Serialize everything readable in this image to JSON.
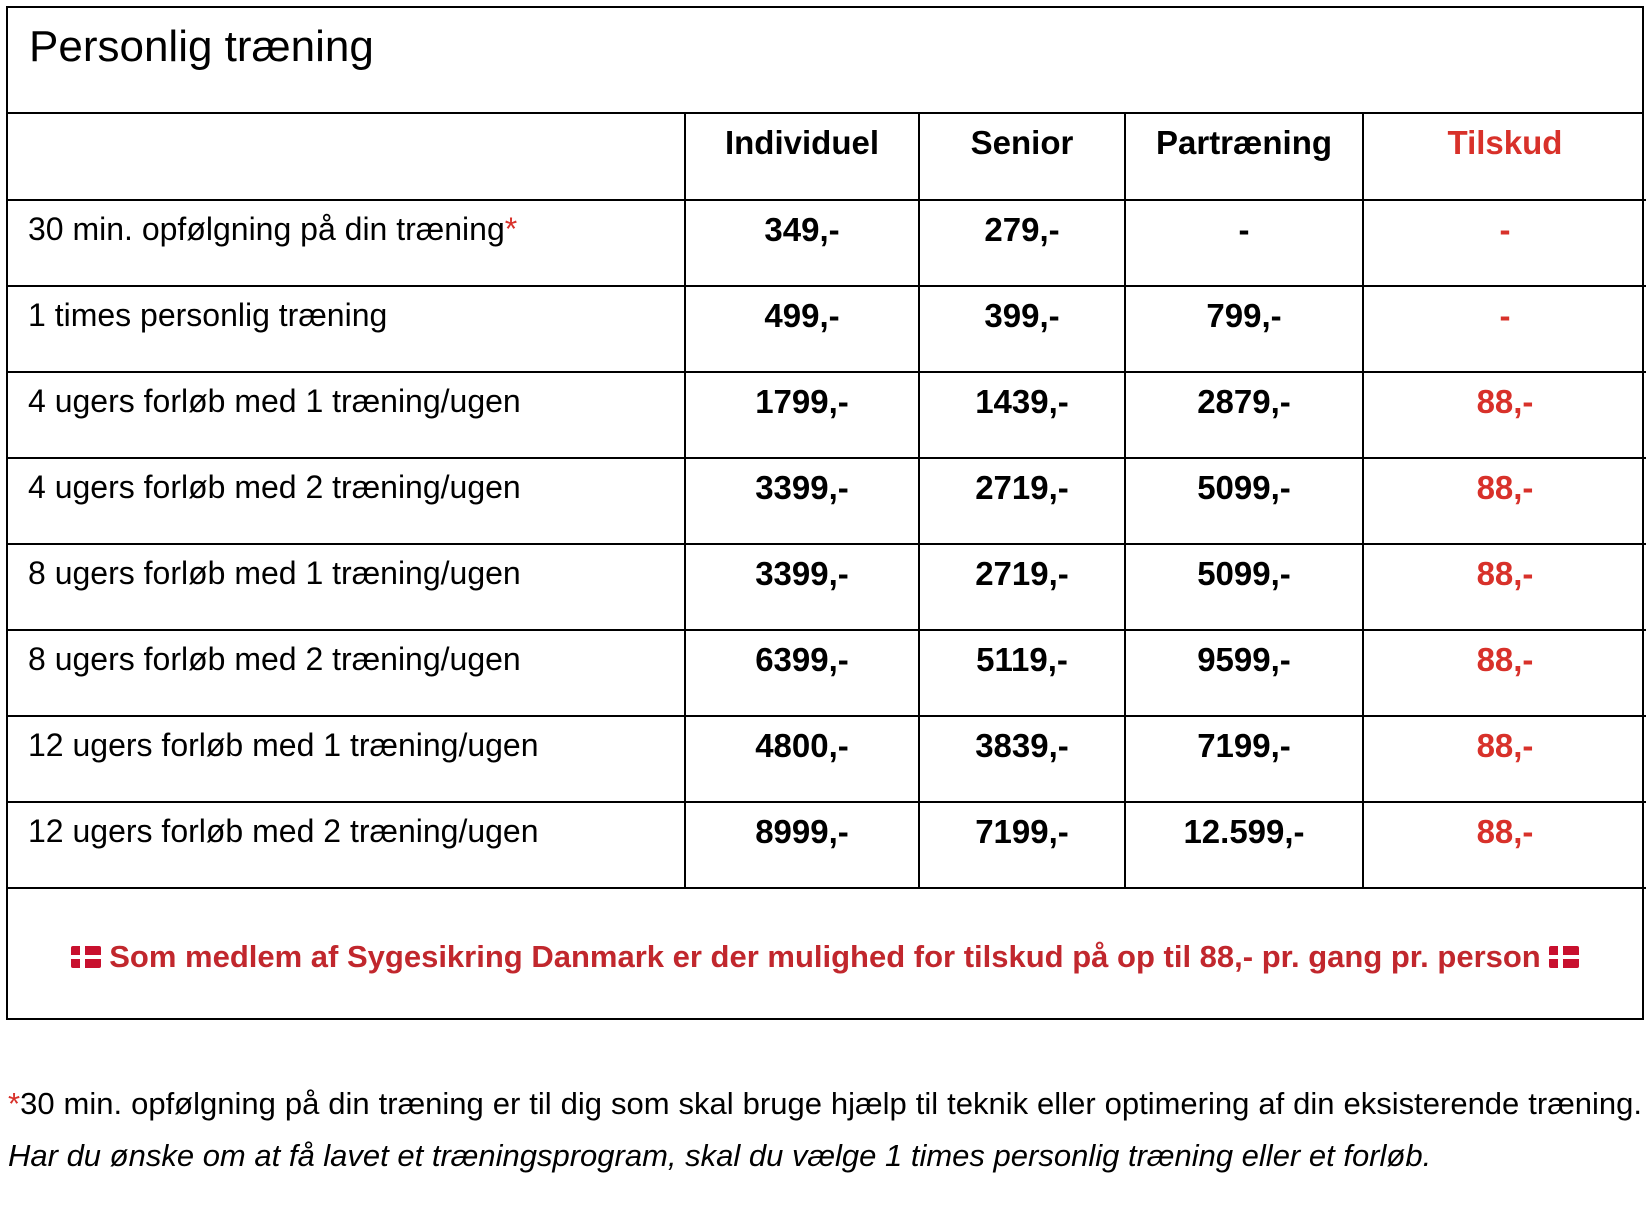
{
  "title": "Personlig træning",
  "columns": {
    "individuel": "Individuel",
    "senior": "Senior",
    "partraening": "Partræning",
    "tilskud": "Tilskud"
  },
  "rows": [
    {
      "label": "30 min. opfølgning på din træning",
      "marker": "*",
      "individuel": "349,-",
      "senior": "279,-",
      "partraening": "-",
      "tilskud": "-"
    },
    {
      "label": "1 times personlig træning",
      "individuel": "499,-",
      "senior": "399,-",
      "partraening": "799,-",
      "tilskud": "-"
    },
    {
      "label": "4 ugers forløb med 1 træning/ugen",
      "individuel": "1799,-",
      "senior": "1439,-",
      "partraening": "2879,-",
      "tilskud": "88,-"
    },
    {
      "label": "4 ugers forløb med 2 træning/ugen",
      "individuel": "3399,-",
      "senior": "2719,-",
      "partraening": "5099,-",
      "tilskud": "88,-"
    },
    {
      "label": "8 ugers forløb med 1 træning/ugen",
      "individuel": "3399,-",
      "senior": "2719,-",
      "partraening": "5099,-",
      "tilskud": "88,-"
    },
    {
      "label": "8 ugers forløb med 2 træning/ugen",
      "individuel": "6399,-",
      "senior": "5119,-",
      "partraening": "9599,-",
      "tilskud": "88,-"
    },
    {
      "label": "12 ugers forløb med 1 træning/ugen",
      "individuel": "4800,-",
      "senior": "3839,-",
      "partraening": "7199,-",
      "tilskud": "88,-"
    },
    {
      "label": "12 ugers forløb med 2 træning/ugen",
      "individuel": "8999,-",
      "senior": "7199,-",
      "partraening": "12.599,-",
      "tilskud": "88,-"
    }
  ],
  "subsidy_note": "Som medlem af Sygesikring Danmark er der mulighed for tilskud på op til 88,- pr. gang pr. person",
  "footnote": {
    "asterisk": "*",
    "text": "30 min. opfølgning på din træning er til dig som skal bruge hjælp til teknik eller optimering af din eksisterende træning.",
    "italic": "Har du ønske om at få lavet et træningsprogram, skal du vælge 1 times personlig træning eller et forløb."
  },
  "colors": {
    "accent_red": "#d8312a",
    "note_red": "#c1272d"
  },
  "icons": [
    "danish-flag-icon",
    "danish-flag-icon"
  ]
}
